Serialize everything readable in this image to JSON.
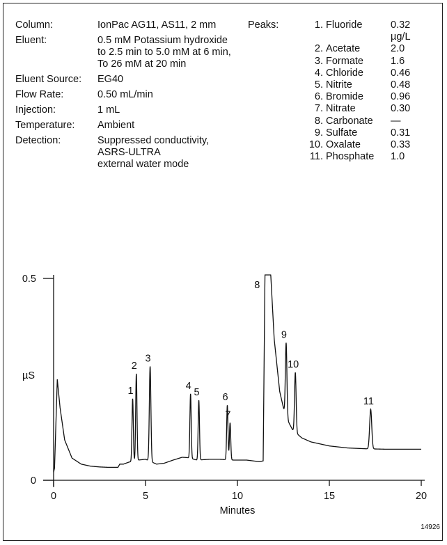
{
  "conditions": [
    {
      "label": "Column:",
      "value": "IonPac AG11, AS11, 2 mm"
    },
    {
      "label": "Eluent:",
      "value": "0.5 mM Potassium hydroxide\nto 2.5 min to 5.0 mM at 6 min,\nTo 26 mM at 20 min"
    },
    {
      "label": "Eluent Source:",
      "value": "EG40"
    },
    {
      "label": "Flow Rate:",
      "value": "0.50 mL/min"
    },
    {
      "label": "Injection:",
      "value": "1 mL"
    },
    {
      "label": "Temperature:",
      "value": "Ambient"
    },
    {
      "label": "Detection:",
      "value": "Suppressed conductivity,\nASRS-ULTRA\nexternal water mode"
    }
  ],
  "peaks_label": "Peaks:",
  "peaks": [
    {
      "num": "1.",
      "name": "Fluoride",
      "value": "0.32 µg/L"
    },
    {
      "num": "2.",
      "name": "Acetate",
      "value": "2.0"
    },
    {
      "num": "3.",
      "name": "Formate",
      "value": "1.6"
    },
    {
      "num": "4.",
      "name": "Chloride",
      "value": "0.46"
    },
    {
      "num": "5.",
      "name": "Nitrite",
      "value": "0.48"
    },
    {
      "num": "6.",
      "name": "Bromide",
      "value": "0.96"
    },
    {
      "num": "7.",
      "name": "Nitrate",
      "value": "0.30"
    },
    {
      "num": "8.",
      "name": "Carbonate",
      "value": "—"
    },
    {
      "num": "9.",
      "name": "Sulfate",
      "value": "0.31"
    },
    {
      "num": "10.",
      "name": "Oxalate",
      "value": "0.33"
    },
    {
      "num": "11.",
      "name": "Phosphate",
      "value": "1.0"
    }
  ],
  "figure_id": "14926",
  "chart_data": {
    "type": "line",
    "xlabel": "Minutes",
    "ylabel": "µS",
    "xlim": [
      0,
      20
    ],
    "ylim": [
      0,
      0.5
    ],
    "x_ticks": [
      "0",
      "5",
      "10",
      "15",
      "20"
    ],
    "y_ticks": [
      "0",
      "0.5"
    ],
    "grid": false,
    "baseline": [
      [
        0.0,
        0.02
      ],
      [
        0.05,
        0.03
      ],
      [
        0.2,
        0.25
      ],
      [
        0.35,
        0.18
      ],
      [
        0.6,
        0.1
      ],
      [
        1.0,
        0.055
      ],
      [
        1.5,
        0.04
      ],
      [
        2.0,
        0.035
      ],
      [
        2.5,
        0.033
      ],
      [
        3.0,
        0.032
      ],
      [
        3.5,
        0.032
      ],
      [
        3.6,
        0.04
      ],
      [
        3.8,
        0.04
      ],
      [
        4.1,
        0.045
      ],
      [
        4.6,
        0.05
      ],
      [
        5.0,
        0.052
      ],
      [
        5.6,
        0.04
      ],
      [
        6.0,
        0.042
      ],
      [
        6.5,
        0.05
      ],
      [
        7.0,
        0.057
      ],
      [
        7.3,
        0.056
      ],
      [
        7.8,
        0.05
      ],
      [
        8.5,
        0.052
      ],
      [
        9.0,
        0.052
      ],
      [
        9.8,
        0.05
      ],
      [
        10.5,
        0.05
      ],
      [
        11.2,
        0.046
      ],
      [
        11.4,
        0.048
      ],
      [
        11.5,
        0.52
      ],
      [
        11.8,
        0.52
      ],
      [
        12.0,
        0.35
      ],
      [
        12.3,
        0.22
      ],
      [
        12.6,
        0.16
      ],
      [
        13.0,
        0.125
      ],
      [
        13.5,
        0.105
      ],
      [
        14.0,
        0.095
      ],
      [
        15.0,
        0.085
      ],
      [
        16.0,
        0.08
      ],
      [
        17.0,
        0.078
      ],
      [
        18.0,
        0.077
      ],
      [
        19.0,
        0.077
      ],
      [
        20.0,
        0.077
      ]
    ],
    "peaks": [
      {
        "label": "1",
        "time": 4.3,
        "height": 0.155,
        "width": 0.05
      },
      {
        "label": "2",
        "time": 4.5,
        "height": 0.215,
        "width": 0.05
      },
      {
        "label": "3",
        "time": 5.25,
        "height": 0.235,
        "width": 0.06
      },
      {
        "label": "4",
        "time": 7.45,
        "height": 0.16,
        "width": 0.05
      },
      {
        "label": "5",
        "time": 7.9,
        "height": 0.148,
        "width": 0.05
      },
      {
        "label": "6",
        "time": 9.45,
        "height": 0.135,
        "width": 0.05
      },
      {
        "label": "7",
        "time": 9.6,
        "height": 0.092,
        "width": 0.05
      },
      {
        "label": "9",
        "time": 12.65,
        "height": 0.185,
        "width": 0.06
      },
      {
        "label": "10",
        "time": 13.15,
        "height": 0.148,
        "width": 0.06
      },
      {
        "label": "11",
        "time": 17.25,
        "height": 0.098,
        "width": 0.08
      }
    ],
    "peak8_label": "8",
    "peak8_time": 11.6
  }
}
